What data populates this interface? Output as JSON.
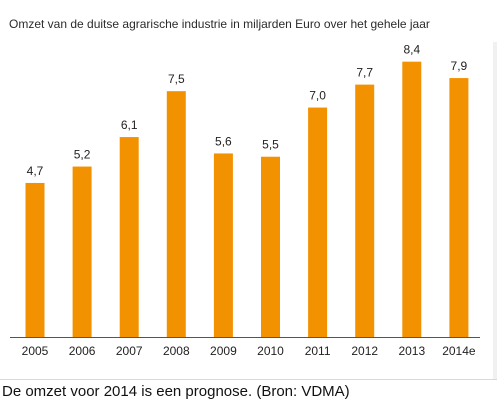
{
  "colors": {
    "bar": "#f39200",
    "axis": "#555555"
  },
  "chart_data": {
    "type": "bar",
    "title": "Omzet van de duitse agrarische industrie in miljarden Euro over het gehele jaar",
    "xlabel": "",
    "ylabel": "",
    "categories": [
      "2005",
      "2006",
      "2007",
      "2008",
      "2009",
      "2010",
      "2011",
      "2012",
      "2013",
      "2014e"
    ],
    "values": [
      4.7,
      5.2,
      6.1,
      7.5,
      5.6,
      5.5,
      7.0,
      7.7,
      8.4,
      7.9
    ],
    "value_labels": [
      "4,7",
      "5,2",
      "6,1",
      "7,5",
      "5,6",
      "5,5",
      "7,0",
      "7,7",
      "8,4",
      "7,9"
    ],
    "ylim": [
      0,
      9
    ],
    "grid": false,
    "legend": "none"
  },
  "footnote": "De omzet voor 2014 is een prognose. (Bron: VDMA)"
}
